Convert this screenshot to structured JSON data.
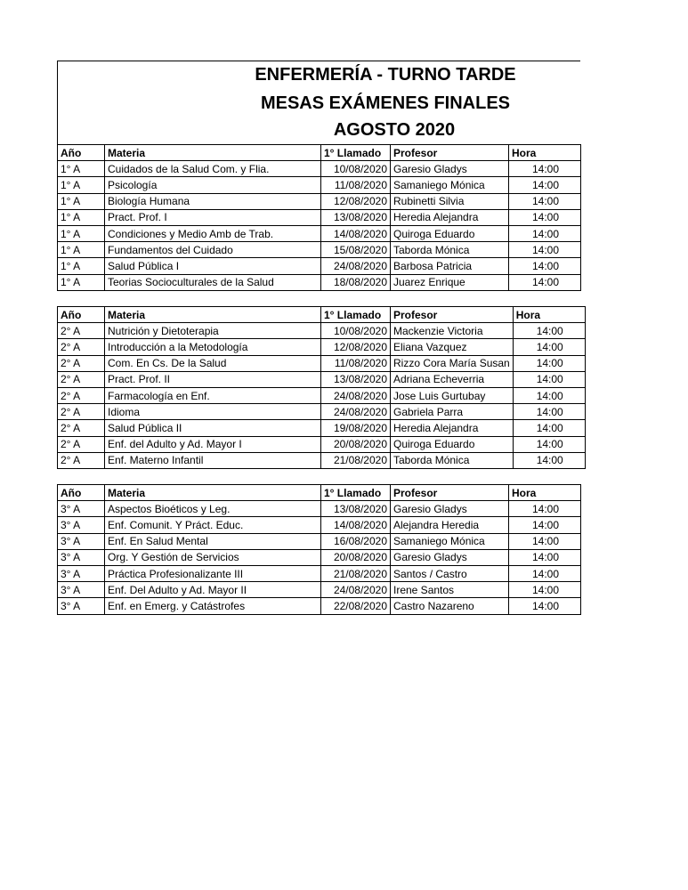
{
  "title": {
    "line1": "ENFERMERÍA - TURNO TARDE",
    "line2": "MESAS EXÁMENES FINALES",
    "line3": "AGOSTO 2020"
  },
  "tables": [
    {
      "header": [
        "Año",
        "Materia",
        "1° Llamado",
        "Profesor",
        "Hora"
      ],
      "rows": [
        [
          "1° A",
          "Cuidados de la Salud Com. y Flia.",
          "10/08/2020",
          "Garesio Gladys",
          "14:00"
        ],
        [
          "1° A",
          "Psicología",
          "11/08/2020",
          "Samaniego Mónica",
          "14:00"
        ],
        [
          "1° A",
          "Biología Humana",
          "12/08/2020",
          "Rubinetti Silvia",
          "14:00"
        ],
        [
          "1° A",
          "Pract. Prof. I",
          "13/08/2020",
          "Heredia Alejandra",
          "14:00"
        ],
        [
          "1° A",
          "Condiciones y Medio Amb de Trab.",
          "14/08/2020",
          "Quiroga Eduardo",
          "14:00"
        ],
        [
          "1° A",
          "Fundamentos del Cuidado",
          "15/08/2020",
          "Taborda Mónica",
          "14:00"
        ],
        [
          "1° A",
          "Salud Pública I",
          "24/08/2020",
          "Barbosa Patricia",
          "14:00"
        ],
        [
          "1° A",
          "Teorias Socioculturales de la Salud",
          "18/08/2020",
          "Juarez Enrique",
          "14:00"
        ]
      ]
    },
    {
      "header": [
        "Año",
        "Materia",
        "1° Llamado",
        "Profesor",
        "Hora"
      ],
      "rows": [
        [
          "2° A",
          "Nutrición y Dietoterapia",
          "10/08/2020",
          "Mackenzie Victoria",
          "14:00"
        ],
        [
          "2° A",
          "Introducción a la Metodología",
          "12/08/2020",
          "Eliana Vazquez",
          "14:00"
        ],
        [
          "2° A",
          "Com. En Cs. De la Salud",
          "11/08/2020",
          "Rizzo Cora María Susan",
          "14:00"
        ],
        [
          "2° A",
          "Pract. Prof. II",
          "13/08/2020",
          "Adriana Echeverria",
          "14:00"
        ],
        [
          "2° A",
          "Farmacología en Enf.",
          "24/08/2020",
          "Jose Luis Gurtubay",
          "14:00"
        ],
        [
          "2° A",
          "Idioma",
          "24/08/2020",
          "Gabriela Parra",
          "14:00"
        ],
        [
          "2° A",
          "Salud Pública II",
          "19/08/2020",
          "Heredia Alejandra",
          "14:00"
        ],
        [
          "2° A",
          "Enf. del Adulto y Ad. Mayor I",
          "20/08/2020",
          "Quiroga Eduardo",
          "14:00"
        ],
        [
          "2° A",
          "Enf. Materno Infantil",
          "21/08/2020",
          "Taborda Mónica",
          "14:00"
        ]
      ]
    },
    {
      "header": [
        "Año",
        "Materia",
        "1° Llamado",
        "Profesor",
        "Hora"
      ],
      "rows": [
        [
          "3° A",
          "Aspectos Bioéticos y Leg.",
          "13/08/2020",
          "Garesio Gladys",
          "14:00"
        ],
        [
          "3° A",
          "Enf. Comunit. Y Práct. Educ.",
          "14/08/2020",
          "Alejandra Heredia",
          "14:00"
        ],
        [
          "3° A",
          "Enf. En Salud Mental",
          "16/08/2020",
          "Samaniego Mónica",
          "14:00"
        ],
        [
          "3° A",
          "Org. Y Gestión de Servicios",
          "20/08/2020",
          "Garesio Gladys",
          "14:00"
        ],
        [
          "3° A",
          "Práctica Profesionalizante III",
          "21/08/2020",
          "Santos / Castro",
          "14:00"
        ],
        [
          "3° A",
          "Enf. Del Adulto y Ad. Mayor II",
          "24/08/2020",
          "Irene Santos",
          "14:00"
        ],
        [
          "3° A",
          "Enf. en Emerg. y Catástrofes",
          "22/08/2020",
          "Castro Nazareno",
          "14:00"
        ]
      ]
    }
  ]
}
